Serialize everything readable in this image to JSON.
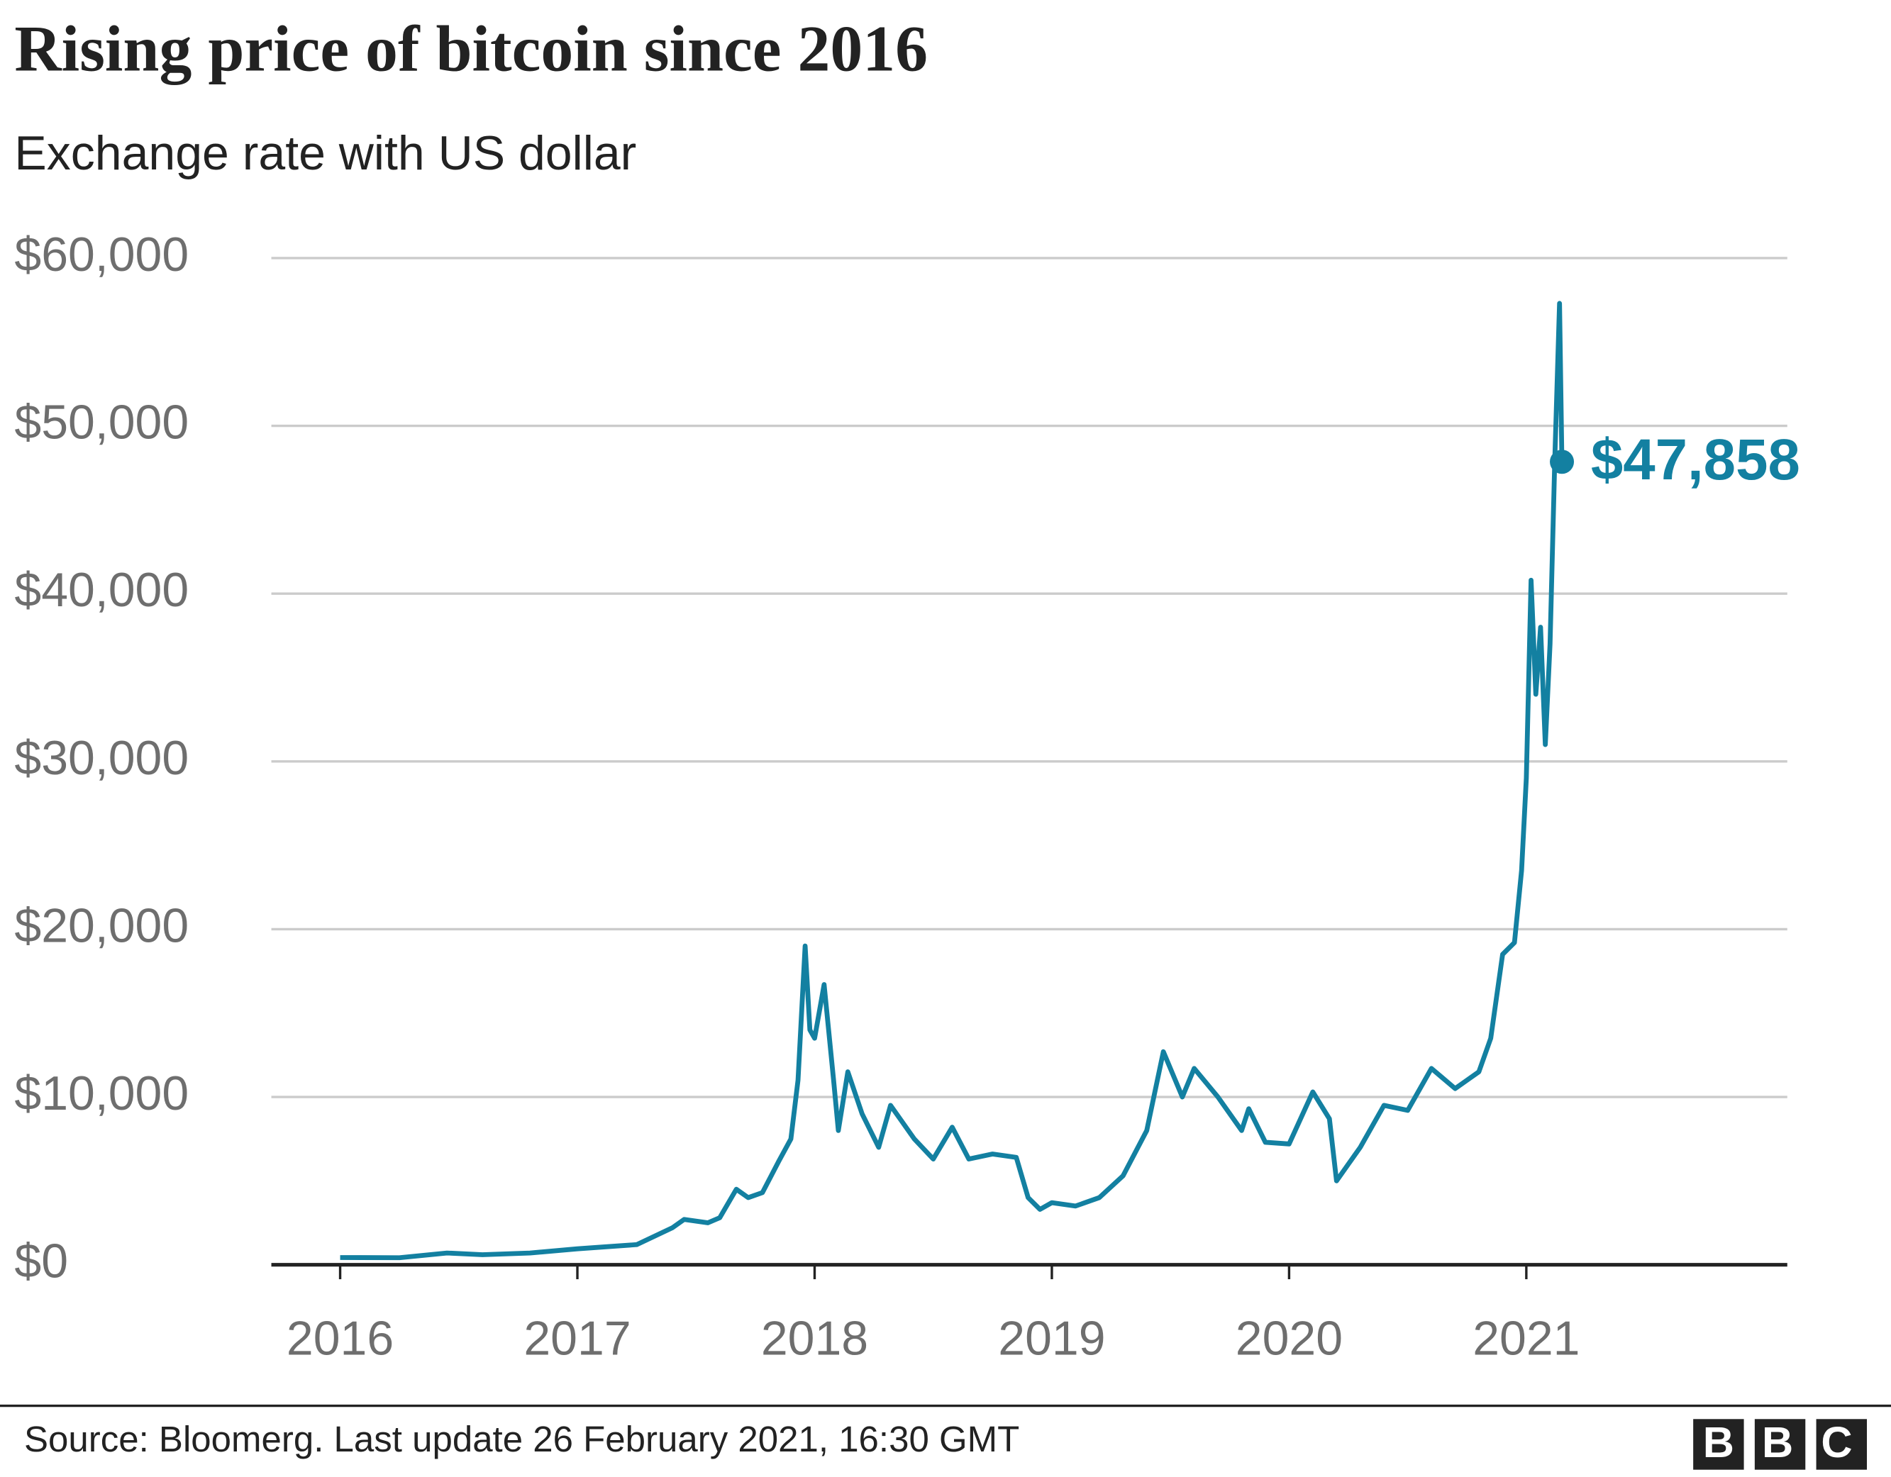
{
  "chart_data": {
    "type": "line",
    "title": "Rising price of bitcoin since 2016",
    "subtitle": "Exchange rate with US dollar",
    "source": "Source: Bloomerg. Last update 26 February 2021, 16:30 GMT",
    "logo": "BBC",
    "color": "#1380a1",
    "grid": true,
    "x": [
      2016.0,
      2016.25,
      2016.45,
      2016.6,
      2016.8,
      2017.0,
      2017.1,
      2017.25,
      2017.4,
      2017.45,
      2017.55,
      2017.6,
      2017.67,
      2017.72,
      2017.78,
      2017.85,
      2017.9,
      2017.93,
      2017.96,
      2017.98,
      2018.0,
      2018.04,
      2018.08,
      2018.1,
      2018.14,
      2018.2,
      2018.27,
      2018.32,
      2018.42,
      2018.5,
      2018.58,
      2018.65,
      2018.75,
      2018.85,
      2018.9,
      2018.95,
      2019.0,
      2019.1,
      2019.2,
      2019.3,
      2019.4,
      2019.47,
      2019.55,
      2019.6,
      2019.7,
      2019.8,
      2019.83,
      2019.9,
      2020.0,
      2020.1,
      2020.17,
      2020.2,
      2020.3,
      2020.4,
      2020.5,
      2020.6,
      2020.7,
      2020.8,
      2020.85,
      2020.9,
      2020.95,
      2020.98,
      2021.0,
      2021.02,
      2021.04,
      2021.06,
      2021.08,
      2021.1,
      2021.12,
      2021.14,
      2021.15
    ],
    "values": [
      430,
      420,
      700,
      600,
      700,
      950,
      1050,
      1200,
      2200,
      2700,
      2500,
      2800,
      4500,
      4000,
      4300,
      6200,
      7500,
      11000,
      19000,
      14000,
      13500,
      16700,
      11000,
      8000,
      11500,
      9000,
      7000,
      9500,
      7500,
      6300,
      8200,
      6300,
      6600,
      6400,
      4000,
      3300,
      3700,
      3500,
      4000,
      5300,
      8000,
      12700,
      10000,
      11700,
      10000,
      8000,
      9300,
      7300,
      7200,
      10300,
      8700,
      5000,
      7000,
      9500,
      9200,
      11700,
      10500,
      11500,
      13500,
      18500,
      19200,
      23500,
      29000,
      40800,
      34000,
      38000,
      31000,
      37000,
      48000,
      57300,
      47858
    ],
    "value_labels": [
      null,
      null,
      null,
      null,
      null,
      null,
      null,
      null,
      null,
      null,
      null,
      null,
      null,
      null,
      null,
      null,
      null,
      null,
      null,
      null,
      null,
      null,
      null,
      null,
      null,
      null,
      null,
      null,
      null,
      null,
      null,
      null,
      null,
      null,
      null,
      null,
      null,
      null,
      null,
      null,
      null,
      null,
      null,
      null,
      null,
      null,
      null,
      null,
      null,
      null,
      null,
      null,
      null,
      null,
      null,
      null,
      null,
      null,
      null,
      null,
      null,
      null,
      null,
      null,
      null,
      null,
      null,
      null,
      null,
      null,
      "$47,858"
    ],
    "xlim": [
      2015.71,
      2022.1
    ],
    "xticks": [
      2016,
      2017,
      2018,
      2019,
      2020,
      2021
    ],
    "ylim": [
      0,
      60000
    ],
    "yticks": [
      {
        "value": 0,
        "label": "$0"
      },
      {
        "value": 10000,
        "label": "$10,000"
      },
      {
        "value": 20000,
        "label": "$20,000"
      },
      {
        "value": 30000,
        "label": "$30,000"
      },
      {
        "value": 40000,
        "label": "$40,000"
      },
      {
        "value": 50000,
        "label": "$50,000"
      },
      {
        "value": 60000,
        "label": "$60,000"
      }
    ]
  }
}
